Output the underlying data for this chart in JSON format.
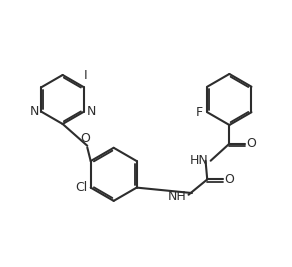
{
  "line_color": "#2d2d2d",
  "label_color": "#2d2d2d",
  "bg_color": "#ffffff",
  "line_width": 1.5,
  "font_size": 9,
  "fig_width": 2.92,
  "fig_height": 2.67,
  "dpi": 100,
  "atoms": {
    "N_label": "N",
    "O_label": "O",
    "F_label": "F",
    "Cl_label": "Cl",
    "I_label": "I",
    "HN_label": "HN",
    "NH_label": "NH"
  }
}
